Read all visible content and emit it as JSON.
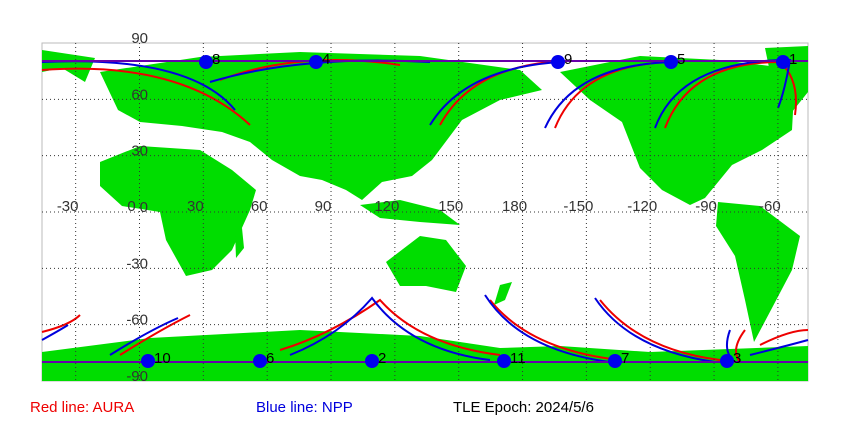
{
  "map": {
    "lat_labels": [
      90,
      60,
      30,
      0,
      -30,
      -60,
      -90
    ],
    "lon_labels": [
      -30,
      0,
      30,
      60,
      90,
      120,
      150,
      180,
      -150,
      -120,
      -90,
      -60
    ],
    "points": [
      "8",
      "4",
      "9",
      "5",
      "1",
      "10",
      "6",
      "2",
      "11",
      "7",
      "3"
    ]
  },
  "legend": {
    "red": "Red line: AURA",
    "blue": "Blue line: NPP",
    "epoch": "TLE Epoch: 2024/5/6"
  }
}
